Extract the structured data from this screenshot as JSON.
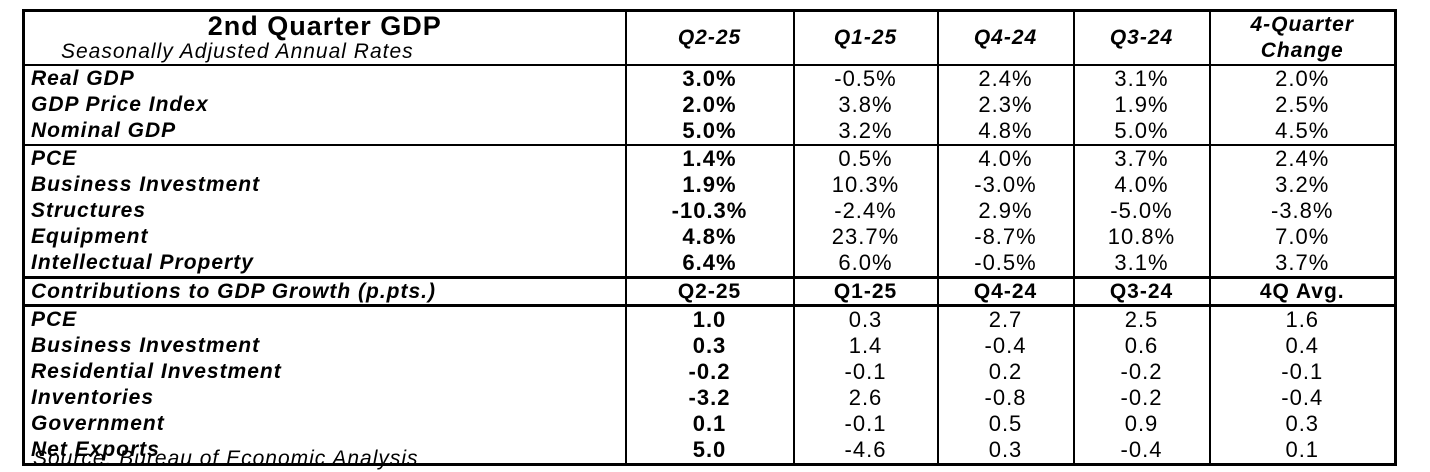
{
  "title": "2nd Quarter GDP",
  "subtitle": "Seasonally Adjusted Annual Rates",
  "columns": [
    "Q2-25",
    "Q1-25",
    "Q4-24",
    "Q3-24"
  ],
  "change_header": [
    "4-Quarter",
    "Change"
  ],
  "growth_rows": [
    {
      "label": "Real GDP",
      "values": [
        "3.0%",
        "-0.5%",
        "2.4%",
        "3.1%",
        "2.0%"
      ]
    },
    {
      "label": "GDP Price Index",
      "values": [
        "2.0%",
        "3.8%",
        "2.3%",
        "1.9%",
        "2.5%"
      ]
    },
    {
      "label": "Nominal GDP",
      "values": [
        "5.0%",
        "3.2%",
        "4.8%",
        "5.0%",
        "4.5%"
      ]
    },
    {
      "label": "PCE",
      "values": [
        "1.4%",
        "0.5%",
        "4.0%",
        "3.7%",
        "2.4%"
      ]
    },
    {
      "label": "Business Investment",
      "values": [
        "1.9%",
        "10.3%",
        "-3.0%",
        "4.0%",
        "3.2%"
      ]
    },
    {
      "label": "Structures",
      "values": [
        "-10.3%",
        "-2.4%",
        "2.9%",
        "-5.0%",
        "-3.8%"
      ]
    },
    {
      "label": "Equipment",
      "values": [
        "4.8%",
        "23.7%",
        "-8.7%",
        "10.8%",
        "7.0%"
      ]
    },
    {
      "label": "Intellectual Property",
      "values": [
        "6.4%",
        "6.0%",
        "-0.5%",
        "3.1%",
        "3.7%"
      ]
    }
  ],
  "contributions_header": {
    "label": "Contributions to GDP Growth  (p.pts.)",
    "columns": [
      "Q2-25",
      "Q1-25",
      "Q4-24",
      "Q3-24",
      "4Q Avg."
    ]
  },
  "contribution_rows": [
    {
      "label": "PCE",
      "values": [
        "1.0",
        "0.3",
        "2.7",
        "2.5",
        "1.6"
      ]
    },
    {
      "label": "Business Investment",
      "values": [
        "0.3",
        "1.4",
        "-0.4",
        "0.6",
        "0.4"
      ]
    },
    {
      "label": "Residential Investment",
      "values": [
        "-0.2",
        "-0.1",
        "0.2",
        "-0.2",
        "-0.1"
      ]
    },
    {
      "label": "Inventories",
      "values": [
        "-3.2",
        "2.6",
        "-0.8",
        "-0.2",
        "-0.4"
      ]
    },
    {
      "label": "Government",
      "values": [
        "0.1",
        "-0.1",
        "0.5",
        "0.9",
        "0.3"
      ]
    },
    {
      "label": "Net Exports",
      "values": [
        "5.0",
        "-4.6",
        "0.3",
        "-0.4",
        "0.1"
      ]
    }
  ],
  "source": "Source: Bureau of Economic Analysis"
}
